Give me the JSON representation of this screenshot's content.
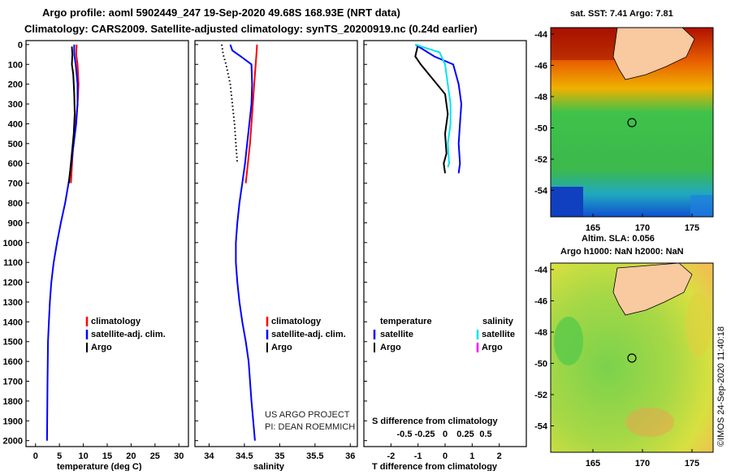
{
  "header": {
    "line1": "Argo profile: aoml 5902449_247 19-Sep-2020 49.68S 168.93E (NRT data)",
    "line2": "Climatology: CARS2009. Satellite-adjusted climatology: synTS_20200919.nc (0.24d earlier)"
  },
  "depth_ticks": [
    "0",
    "100",
    "200",
    "300",
    "400",
    "500",
    "600",
    "700",
    "800",
    "900",
    "1000",
    "1100",
    "1200",
    "1300",
    "1400",
    "1500",
    "1600",
    "1700",
    "1800",
    "1900",
    "2000"
  ],
  "colors": {
    "climatology": "#ff0000",
    "satellite": "#0000ff",
    "argo": "#000000",
    "sat_salinity": "#00e5ee",
    "argo_salinity": "#ff00ff"
  },
  "chart_data": [
    {
      "type": "line",
      "id": "temperature",
      "xlabel": "temperature (deg C)",
      "ylabel": "depth (dbar)",
      "xlim": [
        -2,
        32
      ],
      "ylim": [
        2030,
        -20
      ],
      "xticks": [
        "0",
        "5",
        "10",
        "15",
        "20",
        "25",
        "30"
      ],
      "xtick_values": [
        0,
        5,
        10,
        15,
        20,
        25,
        30
      ],
      "legend": [
        "climatology",
        "satellite-adj. clim.",
        "Argo"
      ],
      "series": [
        {
          "name": "climatology",
          "color": "#ff0000",
          "x": [
            8.6,
            8.5,
            8.8,
            9.0,
            8.8,
            8.4,
            7.9,
            7.4
          ],
          "y": [
            0,
            50,
            100,
            200,
            300,
            400,
            500,
            700
          ]
        },
        {
          "name": "satellite-adj. clim.",
          "color": "#0000ff",
          "x": [
            8.1,
            8.1,
            8.4,
            8.8,
            8.8,
            8.5,
            8.0,
            7.5,
            6.9,
            6.2,
            5.3,
            4.5,
            3.8,
            3.3,
            3.0,
            2.8,
            2.6,
            2.5,
            2.4
          ],
          "y": [
            0,
            50,
            100,
            200,
            300,
            400,
            500,
            600,
            700,
            800,
            900,
            1000,
            1100,
            1200,
            1300,
            1400,
            1500,
            1700,
            2000
          ]
        },
        {
          "name": "Argo",
          "color": "#000000",
          "x": [
            7.6,
            7.7,
            7.6,
            7.9,
            8.1,
            8.2,
            8.0,
            7.6,
            7.2,
            7.0
          ],
          "y": [
            10,
            50,
            100,
            150,
            250,
            350,
            450,
            550,
            650,
            700
          ]
        }
      ]
    },
    {
      "type": "line",
      "id": "salinity",
      "xlabel": "salinity",
      "xlim": [
        33.8,
        36.1
      ],
      "ylim": [
        2030,
        -20
      ],
      "xticks": [
        "34",
        "34.5",
        "35",
        "35.5",
        "36"
      ],
      "xtick_values": [
        34,
        34.5,
        35,
        35.5,
        36
      ],
      "legend": [
        "climatology",
        "satellite-adj. clim.",
        "Argo"
      ],
      "annotation": [
        "US ARGO PROJECT",
        "PI: DEAN ROEMMICH"
      ],
      "series": [
        {
          "name": "climatology",
          "color": "#ff0000",
          "x": [
            34.68,
            34.67,
            34.66,
            34.64,
            34.62,
            34.6,
            34.58,
            34.55,
            34.52
          ],
          "y": [
            0,
            50,
            100,
            200,
            300,
            400,
            500,
            600,
            700
          ]
        },
        {
          "name": "satellite-adj. clim.",
          "color": "#0000ff",
          "x": [
            34.3,
            34.33,
            34.45,
            34.6,
            34.61,
            34.6,
            34.57,
            34.54,
            34.51,
            34.47,
            34.43,
            34.4,
            34.38,
            34.38,
            34.4,
            34.43,
            34.47,
            34.52,
            34.56,
            34.6,
            34.65
          ],
          "y": [
            0,
            30,
            60,
            100,
            200,
            300,
            400,
            500,
            600,
            700,
            800,
            900,
            1000,
            1100,
            1200,
            1300,
            1400,
            1500,
            1600,
            1800,
            2000
          ]
        },
        {
          "name": "Argo",
          "color": "#000000",
          "x": [
            34.18,
            34.2,
            34.24,
            34.3,
            34.33,
            34.36,
            34.38,
            34.4
          ],
          "y": [
            0,
            50,
            100,
            200,
            300,
            400,
            500,
            600
          ]
        }
      ]
    },
    {
      "type": "line",
      "id": "difference",
      "xlabel": "T difference from climatology",
      "xlabel_top": "S difference from climatology",
      "xlim": [
        -3,
        3
      ],
      "ylim": [
        2030,
        -20
      ],
      "xticks": [
        "-2",
        "-1",
        "0",
        "1",
        "2"
      ],
      "xtick_values": [
        -2,
        -1,
        0,
        1,
        2
      ],
      "xticks_top": [
        "-0.5",
        "-0.25",
        "0",
        "0.25",
        "0.5"
      ],
      "legend_temperature_title": "temperature",
      "legend_salinity_title": "salinity",
      "legend_temperature": [
        "satellite",
        "Argo"
      ],
      "legend_salinity": [
        "satellite",
        "Argo"
      ],
      "series": [
        {
          "name": "T satellite",
          "color": "#0000ff",
          "x": [
            -1.1,
            -0.4,
            0.3,
            0.5,
            0.6,
            0.55,
            0.5,
            0.55,
            0.5
          ],
          "y": [
            0,
            60,
            100,
            200,
            300,
            400,
            500,
            600,
            650
          ]
        },
        {
          "name": "T Argo",
          "color": "#000000",
          "x": [
            -1.0,
            -1.1,
            -0.9,
            -0.6,
            0.0,
            0.1,
            0.0,
            0.05,
            -0.05,
            0.0
          ],
          "y": [
            0,
            60,
            100,
            150,
            250,
            350,
            450,
            550,
            600,
            650
          ]
        },
        {
          "name": "S satellite",
          "color": "#00e5ee",
          "x": [
            -1.1,
            -0.2,
            0.0,
            0.1,
            0.2,
            0.2,
            0.1,
            0.15,
            0.1
          ],
          "y": [
            0,
            40,
            100,
            200,
            300,
            400,
            500,
            600,
            620
          ]
        }
      ]
    }
  ],
  "maps": [
    {
      "title": "sat. SST: 7.41  Argo: 7.81",
      "lat_ticks": [
        "-44",
        "-46",
        "-48",
        "-50",
        "-52",
        "-54"
      ],
      "lon_ticks": [
        "165",
        "170",
        "175"
      ]
    },
    {
      "title": "Altim. SLA: 0.056",
      "subtitle": "Argo h1000: NaN h2000: NaN",
      "lat_ticks": [
        "-44",
        "-46",
        "-48",
        "-50",
        "-52",
        "-54"
      ],
      "lon_ticks": [
        "165",
        "170",
        "175"
      ]
    }
  ],
  "credit": "©IMOS 24-Sep-2020 11:40:18"
}
